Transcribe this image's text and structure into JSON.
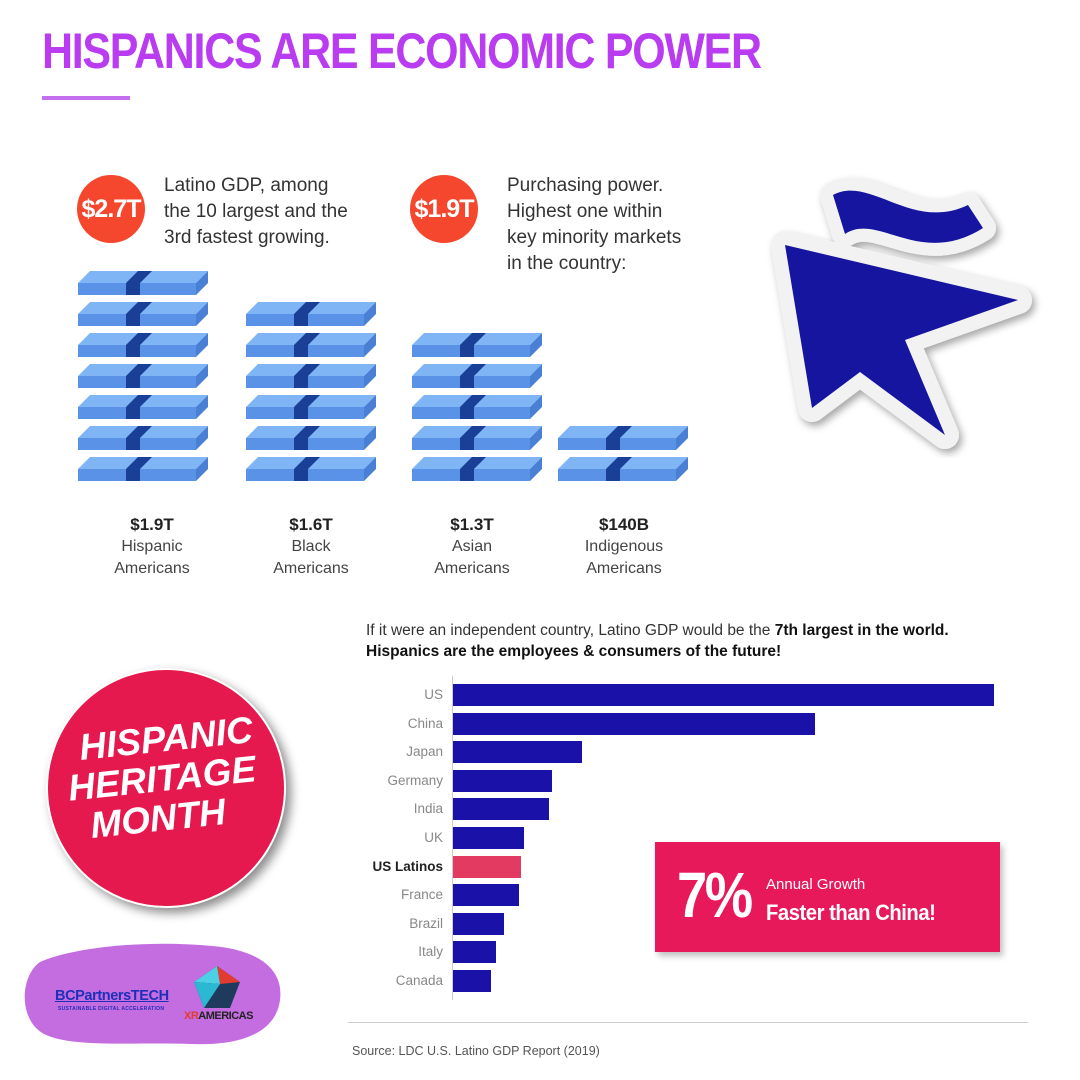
{
  "header": {
    "title": "HISPANICS ARE ECONOMIC POWER"
  },
  "stats": [
    {
      "value": "$2.7T",
      "lines": [
        "Latino GDP, among",
        "the 10 largest and the",
        "3rd fastest growing."
      ]
    },
    {
      "value": "$1.9T",
      "lines": [
        "Purchasing power.",
        "Highest one within",
        "key minority markets",
        "in the country:"
      ]
    }
  ],
  "purchasing_power": [
    {
      "value": "$1.9T",
      "label_lines": [
        "Hispanic",
        "Americans"
      ],
      "bill_count": 7
    },
    {
      "value": "$1.6T",
      "label_lines": [
        "Black",
        "Americans"
      ],
      "bill_count": 6
    },
    {
      "value": "$1.3T",
      "label_lines": [
        "Asian",
        "Americans"
      ],
      "bill_count": 5
    },
    {
      "value": "$140B",
      "label_lines": [
        "Indigenous",
        "Americans"
      ],
      "bill_count": 2
    }
  ],
  "gdp_chart": {
    "intro_text": "If it were an independent country, Latino GDP would be the ",
    "intro_bold": "7th largest in the world.",
    "intro_line2": "Hispanics are the employees & consumers of the future!",
    "source": "Source: LDC U.S. Latino GDP Report (2019)"
  },
  "chart_data": {
    "type": "bar",
    "orientation": "horizontal",
    "categories": [
      "US",
      "China",
      "Japan",
      "Germany",
      "India",
      "UK",
      "US Latinos",
      "France",
      "Brazil",
      "Italy",
      "Canada"
    ],
    "values": [
      21.4,
      14.3,
      5.1,
      3.9,
      3.8,
      2.8,
      2.7,
      2.6,
      2.0,
      1.7,
      1.5
    ],
    "highlight": "US Latinos",
    "colors": {
      "default": "#1a12a8",
      "highlight": "#e23a60"
    },
    "xlim": [
      0,
      21.4
    ],
    "grid": false
  },
  "growth_callout": {
    "percent": "7%",
    "line1": "Annual Growth",
    "line2": "Faster than China!"
  },
  "badge": {
    "lines": [
      "HISPANIC",
      "HERITAGE",
      "MONTH"
    ]
  },
  "logos": {
    "bcp_name": "BCPartnersTECH",
    "bcp_tagline": "SUSTAINABLE DIGITAL ACCELERATION",
    "xr_prefix": "XR",
    "xr_suffix": "AMERICAS"
  },
  "colors": {
    "title": "#b93cf0",
    "stat_circle": "#f4472e",
    "bill": "#7fb4f5",
    "bill_band": "#1a3f96",
    "star": "#1515a0",
    "badge": "#e6194e",
    "logo_blob": "#c46de0"
  }
}
